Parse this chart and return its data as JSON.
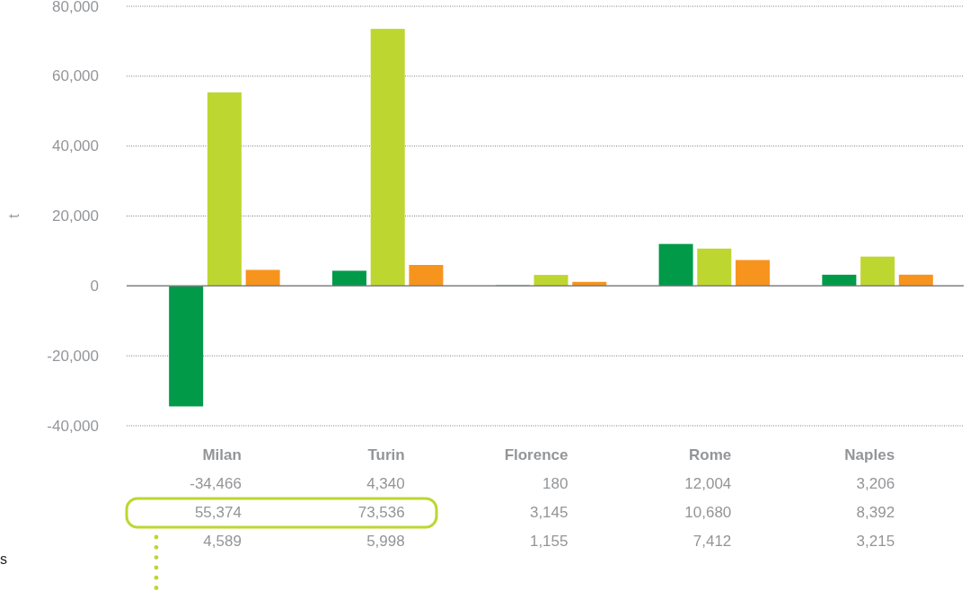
{
  "chart_data": {
    "type": "bar",
    "ylabel": "t",
    "categories": [
      "Milan",
      "Turin",
      "Florence",
      "Rome",
      "Naples"
    ],
    "series": [
      {
        "color": "#009a49",
        "values": [
          -34466,
          4340,
          180,
          12004,
          3206
        ],
        "value_labels": [
          "-34,466",
          "4,340",
          "180",
          "12,004",
          "3,206"
        ]
      },
      {
        "color": "#bed630",
        "values": [
          55374,
          73536,
          3145,
          10680,
          8392
        ],
        "value_labels": [
          "55,374",
          "73,536",
          "3,145",
          "10,680",
          "8,392"
        ]
      },
      {
        "color": "#f7941d",
        "values": [
          4589,
          5998,
          1155,
          7412,
          3215
        ],
        "value_labels": [
          "4,589",
          "5,998",
          "1,155",
          "7,412",
          "3,215"
        ]
      }
    ],
    "ylim": [
      -40000,
      80000
    ],
    "yticks": [
      {
        "value": -40000,
        "label": "-40,000"
      },
      {
        "value": -20000,
        "label": "-20,000"
      },
      {
        "value": 0,
        "label": "0"
      },
      {
        "value": 20000,
        "label": "20,000"
      },
      {
        "value": 40000,
        "label": "40,000"
      },
      {
        "value": 60000,
        "label": "60,000"
      },
      {
        "value": 80000,
        "label": "80,000"
      }
    ],
    "grid": "y",
    "annotations": [
      "s"
    ]
  }
}
